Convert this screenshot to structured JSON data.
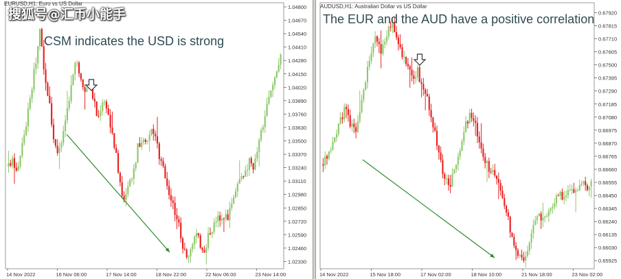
{
  "watermark": "搜狐号@汇币小能手",
  "colors": {
    "bull": "#8dc86a",
    "bear": "#e82020",
    "arrow": "#2b8a2b",
    "grid": "#c8c8c8",
    "axis": "#333333"
  },
  "icons": [
    "down-arrow-icon",
    "trend-arrow-icon"
  ],
  "left_chart": {
    "title": "EURUSD,H1: Euro vs US Dollar",
    "annotation": "CSM indicates the USD is strong"
  },
  "right_chart": {
    "title": "AUDUSD,H1:  Australian Dollar vs US Dollar",
    "annotation": "The EUR and the AUD have a positive correlation"
  },
  "chart_data": [
    {
      "type": "candlestick",
      "title": "EURUSD,H1: Euro vs US Dollar",
      "y_ticks": [
        "1.04800",
        "1.04670",
        "1.04540",
        "1.04410",
        "1.04280",
        "1.04150",
        "1.04020",
        "1.03890",
        "1.03760",
        "1.03630",
        "1.03500",
        "1.03370",
        "1.03240",
        "1.03110",
        "1.02980",
        "1.02850",
        "1.02720",
        "1.02590",
        "1.02460",
        "1.02330"
      ],
      "x_ticks": [
        "14 Nov 2022",
        "16 Nov 06:00",
        "17 Nov 14:00",
        "18 Nov 22:00",
        "22 Nov 06:00",
        "23 Nov 14:00"
      ],
      "ylim": [
        1.0226,
        1.0484
      ],
      "path": [
        1.0325,
        1.033,
        1.0322,
        1.0345,
        1.0368,
        1.0395,
        1.0425,
        1.0455,
        1.042,
        1.039,
        1.0355,
        1.034,
        1.0348,
        1.0375,
        1.04,
        1.0428,
        1.041,
        1.0398,
        1.0405,
        1.0392,
        1.037,
        1.039,
        1.0385,
        1.036,
        1.034,
        1.031,
        1.029,
        1.0305,
        1.032,
        1.0345,
        1.0352,
        1.0345,
        1.036,
        1.0355,
        1.033,
        1.032,
        1.03,
        1.0285,
        1.027,
        1.025,
        1.0235,
        1.025,
        1.026,
        1.025,
        1.0245,
        1.0262,
        1.0268,
        1.0275,
        1.028,
        1.0275,
        1.029,
        1.0305,
        1.032,
        1.0318,
        1.033,
        1.0325,
        1.0345,
        1.0365,
        1.0385,
        1.04,
        1.0418,
        1.0435
      ],
      "annotations": [
        "CSM indicates the USD is strong"
      ]
    },
    {
      "type": "candlestick",
      "title": "AUDUSD,H1:  Australian Dollar vs US Dollar",
      "y_ticks": [
        "0.67920",
        "0.67815",
        "0.67710",
        "0.67605",
        "0.67500",
        "0.67395",
        "0.67290",
        "0.67185",
        "0.67080",
        "0.66975",
        "0.66870",
        "0.66765",
        "0.66660",
        "0.66555",
        "0.66450",
        "0.66345",
        "0.66240",
        "0.66135",
        "0.66030",
        "0.65925"
      ],
      "x_ticks": [
        "14 Nov 2022",
        "15 Nov 18:00",
        "17 Nov 02:00",
        "18 Nov 10:00",
        "21 Nov 18:00",
        "23 Nov 02:00"
      ],
      "ylim": [
        0.6586,
        0.68
      ],
      "path": [
        0.667,
        0.668,
        0.669,
        0.67,
        0.6715,
        0.6705,
        0.6695,
        0.671,
        0.6735,
        0.676,
        0.6775,
        0.676,
        0.677,
        0.6785,
        0.6775,
        0.676,
        0.675,
        0.674,
        0.6745,
        0.673,
        0.672,
        0.67,
        0.668,
        0.666,
        0.665,
        0.6665,
        0.668,
        0.67,
        0.671,
        0.67,
        0.6685,
        0.667,
        0.6665,
        0.666,
        0.6645,
        0.663,
        0.661,
        0.66,
        0.659,
        0.6605,
        0.662,
        0.663,
        0.6625,
        0.6635,
        0.664,
        0.6648,
        0.664,
        0.665,
        0.6645,
        0.6658,
        0.665,
        0.6655
      ],
      "annotations": [
        "The EUR and the AUD have a positive correlation"
      ]
    }
  ]
}
